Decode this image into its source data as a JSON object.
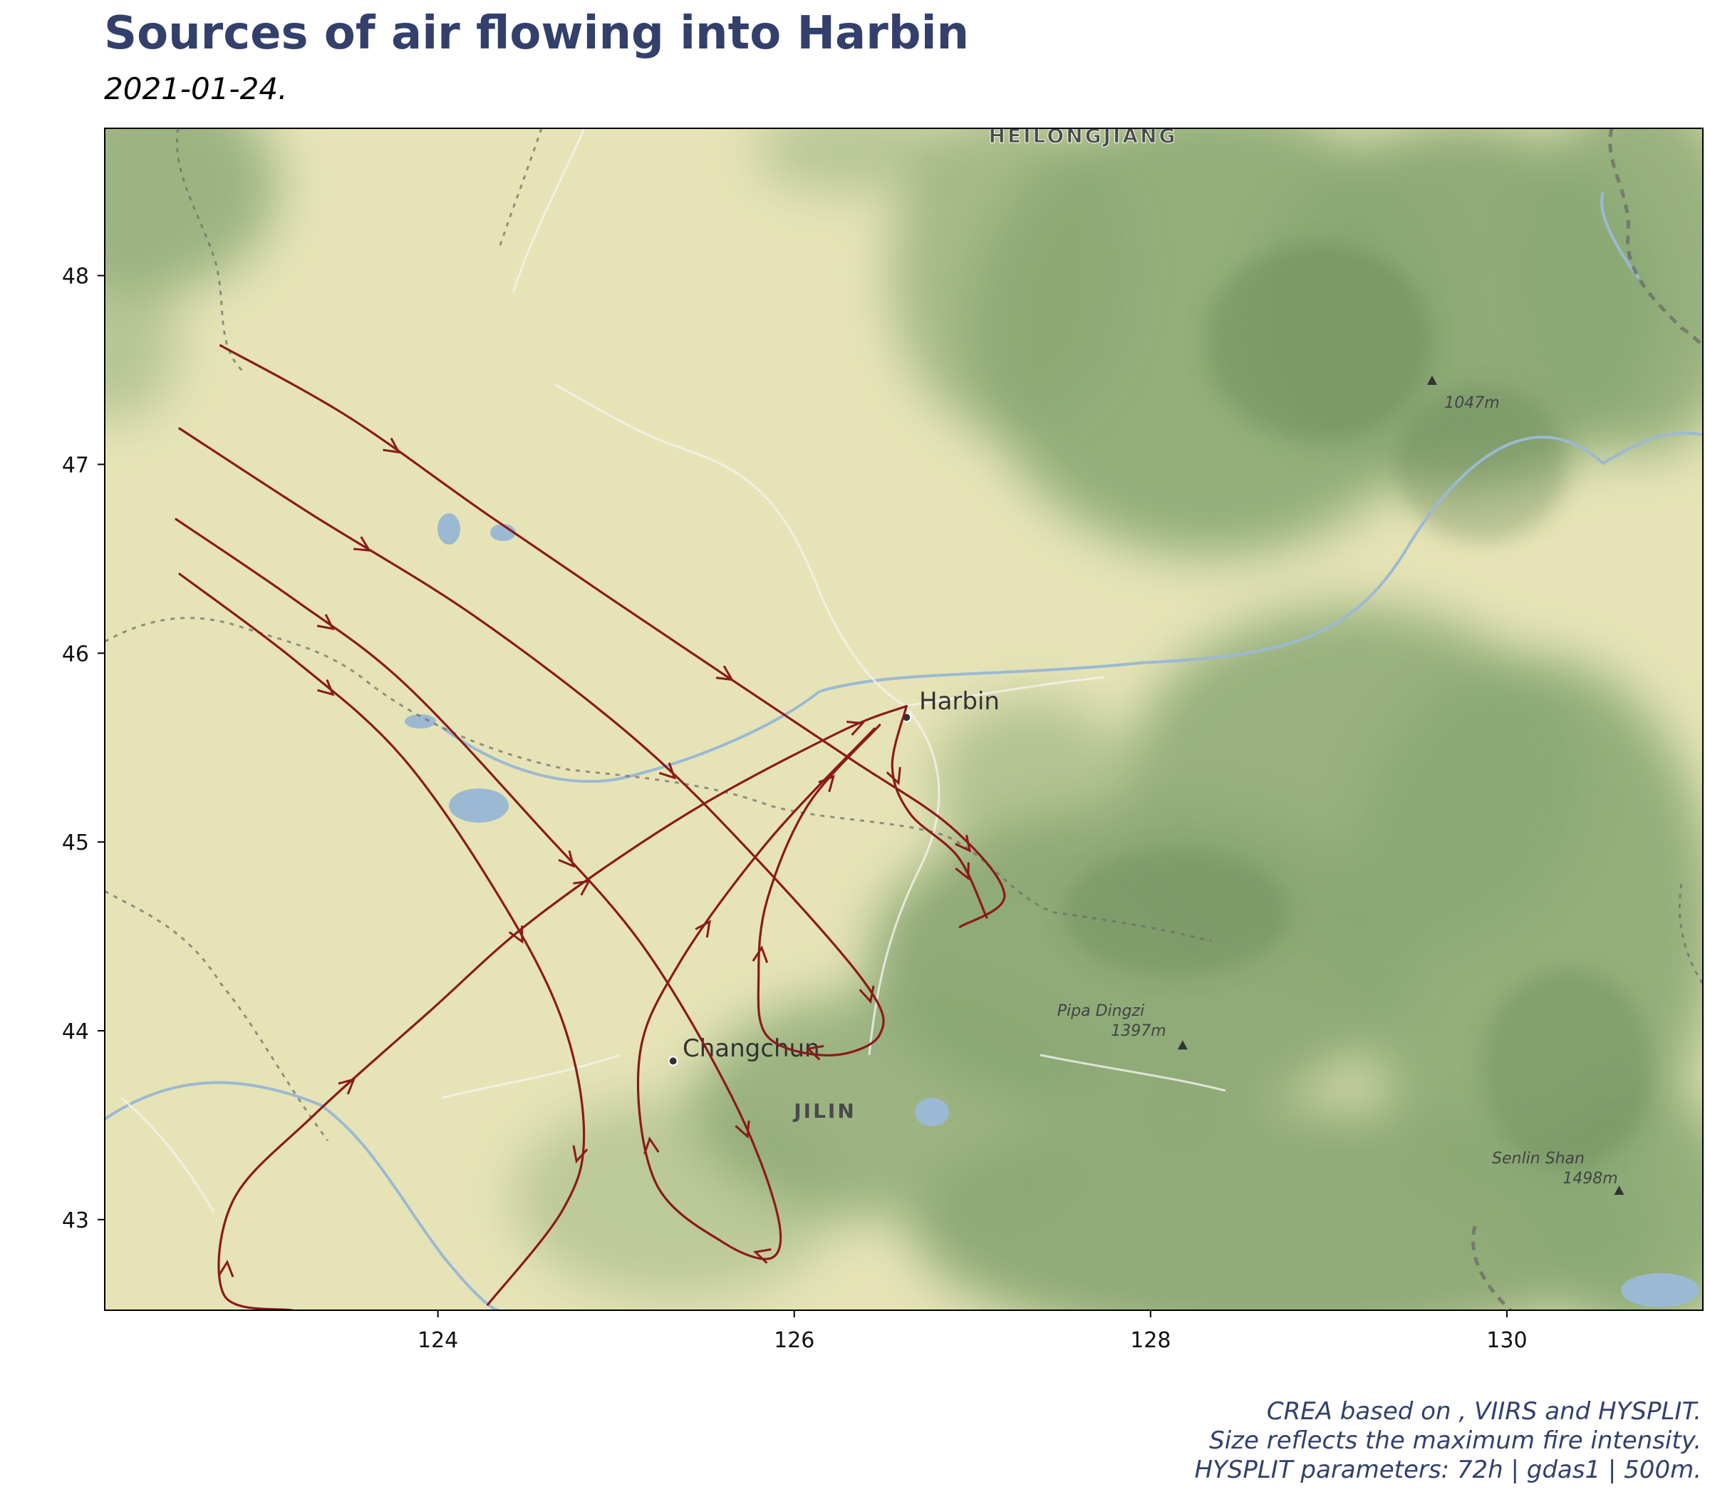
{
  "title": "Sources of air flowing into Harbin",
  "subtitle": "2021-01-24.",
  "caption": [
    "CREA based on , VIIRS and HYSPLIT.",
    "Size reflects the maximum fire intensity.",
    "HYSPLIT parameters: 72h | gdas1 | 500m."
  ],
  "map": {
    "lon_range": [
      122.13,
      131.1
    ],
    "lat_range": [
      42.52,
      48.78
    ],
    "x_ticks": [
      124,
      126,
      128,
      130
    ],
    "y_ticks": [
      43,
      44,
      45,
      46,
      47,
      48
    ],
    "labels": {
      "province_north": "HEILONGJIANG",
      "province_south": "JILIN",
      "city_harbin": "Harbin",
      "city_changchun": "Changchun",
      "peak_1": "1047m",
      "peak_2_name": "Pipa Dingzi",
      "peak_2_elev": "1397m",
      "peak_3_name": "Senlin Shan",
      "peak_3_elev": "1498m"
    },
    "cities": [
      {
        "name": "Harbin",
        "lon": 126.63,
        "lat": 45.66
      },
      {
        "name": "Changchun",
        "lon": 125.32,
        "lat": 43.84
      }
    ],
    "peaks": [
      {
        "lon": 129.58,
        "lat": 47.44
      },
      {
        "lon": 128.18,
        "lat": 43.92
      },
      {
        "lon": 130.63,
        "lat": 43.15
      }
    ],
    "colors": {
      "trajectory": "#8b1a1a",
      "plain": "#e6e4b6",
      "forest": "#8aa874",
      "forest_dark": "#5d7e4b",
      "water": "#9cb9d3",
      "border": "#6b6b66",
      "road": "#f3f3ee"
    }
  },
  "trajectories": [
    {
      "points": [
        [
          122.78,
          47.63
        ],
        [
          123.5,
          47.25
        ],
        [
          124.3,
          46.72
        ],
        [
          125.3,
          46.08
        ],
        [
          126.3,
          45.45
        ],
        [
          126.88,
          45.08
        ],
        [
          127.18,
          44.72
        ],
        [
          126.93,
          44.55
        ]
      ]
    },
    {
      "points": [
        [
          122.55,
          47.19
        ],
        [
          123.3,
          46.73
        ],
        [
          124.2,
          46.2
        ],
        [
          125.1,
          45.55
        ],
        [
          125.75,
          44.95
        ],
        [
          126.4,
          44.25
        ],
        [
          126.48,
          43.98
        ],
        [
          126.2,
          43.87
        ],
        [
          125.85,
          43.97
        ],
        [
          125.8,
          44.3
        ],
        [
          125.85,
          44.7
        ],
        [
          126.08,
          45.2
        ],
        [
          126.48,
          45.62
        ]
      ]
    },
    {
      "points": [
        [
          122.53,
          46.71
        ],
        [
          123.2,
          46.28
        ],
        [
          123.8,
          45.85
        ],
        [
          124.55,
          45.1
        ],
        [
          125.15,
          44.45
        ],
        [
          125.65,
          43.65
        ],
        [
          125.9,
          43.05
        ],
        [
          125.88,
          42.8
        ],
        [
          125.6,
          42.88
        ],
        [
          125.22,
          43.2
        ],
        [
          125.13,
          43.85
        ],
        [
          125.35,
          44.35
        ],
        [
          125.85,
          45.0
        ],
        [
          126.45,
          45.6
        ]
      ]
    },
    {
      "points": [
        [
          122.55,
          46.42
        ],
        [
          123.2,
          45.96
        ],
        [
          123.8,
          45.45
        ],
        [
          124.35,
          44.7
        ],
        [
          124.7,
          44.05
        ],
        [
          124.82,
          43.45
        ],
        [
          124.7,
          43.05
        ],
        [
          124.28,
          42.55
        ]
      ]
    },
    {
      "points": [
        [
          123.18,
          42.52
        ],
        [
          122.8,
          42.6
        ],
        [
          122.85,
          43.1
        ],
        [
          123.3,
          43.55
        ],
        [
          123.95,
          44.1
        ],
        [
          124.55,
          44.6
        ],
        [
          125.4,
          45.15
        ],
        [
          126.25,
          45.58
        ],
        [
          126.63,
          45.72
        ]
      ]
    },
    {
      "points": [
        [
          126.63,
          45.72
        ],
        [
          126.55,
          45.4
        ],
        [
          126.65,
          45.15
        ],
        [
          126.92,
          44.92
        ],
        [
          127.08,
          44.6
        ]
      ]
    }
  ]
}
